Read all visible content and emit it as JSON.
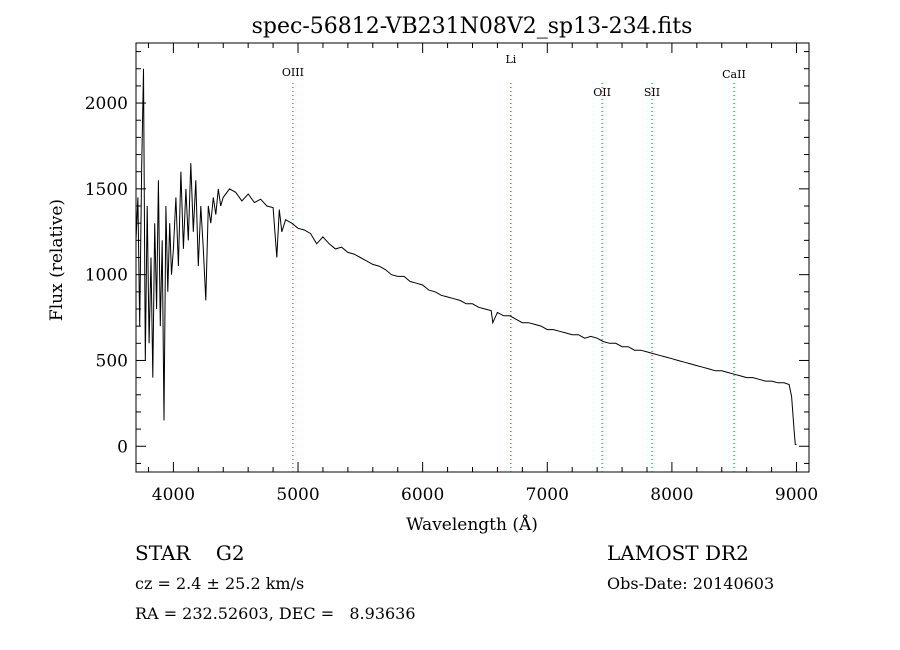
{
  "chart_data": {
    "type": "line",
    "title": "spec-56812-VB231N08V2_sp13-234.fits",
    "xlabel": "Wavelength (Å)",
    "ylabel": "Flux (relative)",
    "xlim": [
      3700,
      9100
    ],
    "ylim": [
      -150,
      2350
    ],
    "x_ticks": [
      4000,
      5000,
      6000,
      7000,
      8000,
      9000
    ],
    "y_ticks": [
      0,
      500,
      1000,
      1500,
      2000
    ],
    "grid": false,
    "line_color": "#000000",
    "marker_color": "#ff0000",
    "series": [
      {
        "x": [
          3700,
          3715,
          3730,
          3745,
          3760,
          3775,
          3790,
          3805,
          3820,
          3835,
          3850,
          3865,
          3880,
          3895,
          3910,
          3925,
          3940,
          3955,
          3970,
          3985,
          4000,
          4020,
          4040,
          4060,
          4080,
          4100,
          4120,
          4140,
          4160,
          4180,
          4200,
          4220,
          4240,
          4260,
          4280,
          4300,
          4320,
          4340,
          4360,
          4380,
          4400,
          4450,
          4500,
          4550,
          4600,
          4650,
          4700,
          4750,
          4800,
          4830,
          4850,
          4870,
          4900,
          4950,
          5000,
          5050,
          5100,
          5150,
          5200,
          5250,
          5300,
          5350,
          5400,
          5450,
          5500,
          5550,
          5600,
          5650,
          5700,
          5750,
          5800,
          5850,
          5900,
          5950,
          6000,
          6050,
          6100,
          6150,
          6200,
          6250,
          6300,
          6350,
          6400,
          6450,
          6500,
          6550,
          6563,
          6600,
          6650,
          6700,
          6750,
          6800,
          6850,
          6900,
          6950,
          7000,
          7050,
          7100,
          7150,
          7200,
          7250,
          7300,
          7350,
          7400,
          7450,
          7500,
          7550,
          7600,
          7650,
          7700,
          7750,
          7800,
          7850,
          7900,
          7950,
          8000,
          8050,
          8100,
          8150,
          8200,
          8250,
          8300,
          8350,
          8400,
          8450,
          8500,
          8550,
          8600,
          8650,
          8700,
          8750,
          8800,
          8850,
          8900,
          8940,
          8960,
          8980,
          8990,
          9000
        ],
        "y": [
          1200,
          1450,
          700,
          1600,
          2200,
          500,
          1400,
          600,
          1100,
          400,
          1300,
          800,
          1550,
          700,
          1200,
          150,
          1400,
          900,
          1300,
          1000,
          1150,
          1450,
          1050,
          1600,
          1150,
          1500,
          1200,
          1650,
          1250,
          1550,
          1050,
          1400,
          1150,
          850,
          1400,
          1300,
          1450,
          1350,
          1500,
          1400,
          1450,
          1500,
          1480,
          1430,
          1470,
          1420,
          1440,
          1400,
          1390,
          1100,
          1380,
          1250,
          1320,
          1300,
          1270,
          1260,
          1240,
          1180,
          1220,
          1180,
          1150,
          1160,
          1130,
          1120,
          1100,
          1080,
          1060,
          1050,
          1030,
          1000,
          990,
          990,
          960,
          950,
          940,
          910,
          900,
          880,
          870,
          860,
          850,
          830,
          830,
          810,
          800,
          790,
          720,
          780,
          760,
          760,
          740,
          720,
          720,
          710,
          700,
          680,
          680,
          670,
          660,
          650,
          650,
          630,
          640,
          630,
          610,
          600,
          600,
          580,
          580,
          560,
          560,
          550,
          540,
          530,
          520,
          510,
          500,
          490,
          480,
          470,
          460,
          450,
          440,
          440,
          430,
          420,
          410,
          400,
          400,
          390,
          380,
          380,
          370,
          370,
          360,
          290,
          100,
          10,
          10
        ]
      }
    ],
    "line_markers": [
      {
        "label": "OIII",
        "x": 4959
      },
      {
        "label": "Li",
        "x": 6708
      },
      {
        "label": "OII",
        "x": 7440
      },
      {
        "label": "SII",
        "x": 7840
      },
      {
        "label": "CaII",
        "x": 8498
      }
    ]
  },
  "info": {
    "object_class": "STAR    G2",
    "velocity": "cz = 2.4 ± 25.2 km/s",
    "coords": "RA = 232.52603, DEC =   8.93636",
    "survey": "LAMOST DR2",
    "obs_date": "Obs-Date: 20140603"
  }
}
